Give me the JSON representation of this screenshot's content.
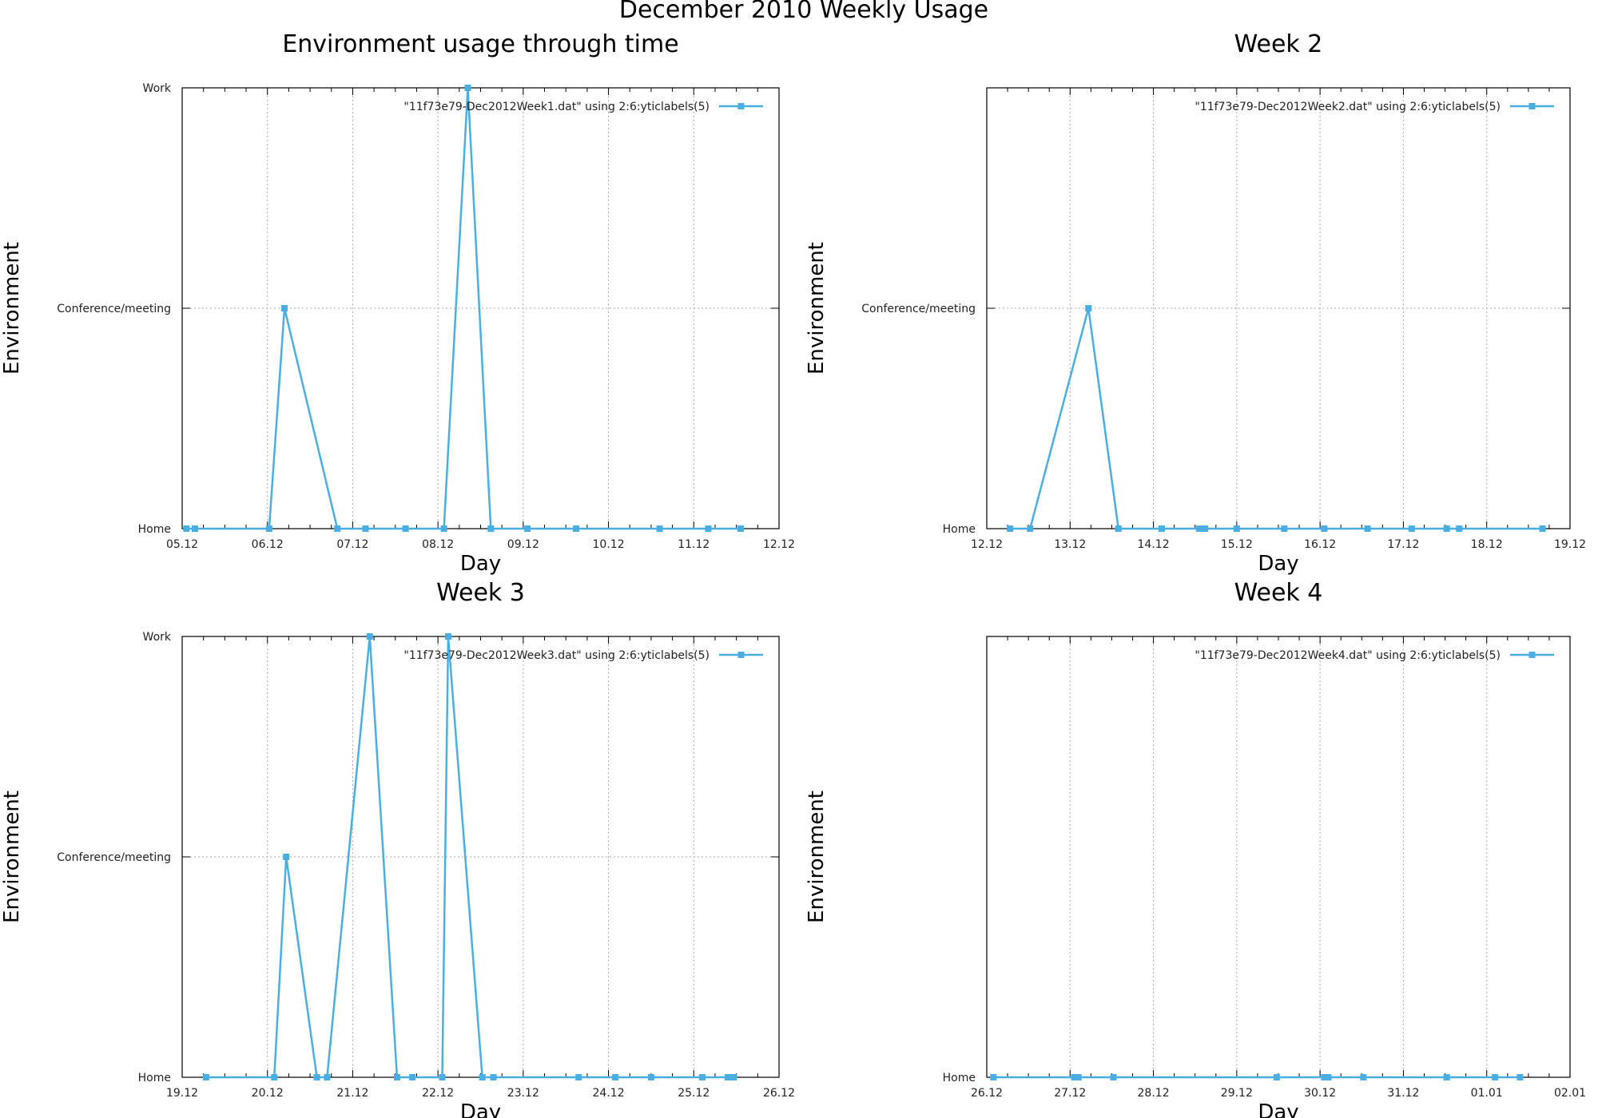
{
  "figure": {
    "title": "December 2010 Weekly Usage"
  },
  "style": {
    "series_color": "#4aaee3",
    "axis_color": "#000000",
    "grid_color": "#aaaaaa"
  },
  "y_categories": [
    "Home",
    "Conference/meeting",
    "Work"
  ],
  "chart_data": [
    {
      "type": "line",
      "title": "Environment usage through time",
      "xlabel": "Day",
      "ylabel": "Environment",
      "xlim": [
        5.0,
        12.0
      ],
      "x_ticks": [
        "05.12",
        "06.12",
        "07.12",
        "08.12",
        "09.12",
        "10.12",
        "11.12",
        "12.12"
      ],
      "y_ticks": [
        "Home",
        "Conference/meeting",
        "Work"
      ],
      "grid": true,
      "legend_position": "top-right",
      "series": [
        {
          "name": "\"11f73e79-Dec2012Week1.dat\" using 2:6:yticlabels(5)",
          "x": [
            5.05,
            5.15,
            6.02,
            6.2,
            6.82,
            7.15,
            7.62,
            8.07,
            8.35,
            8.62,
            9.05,
            9.62,
            10.6,
            11.17,
            11.55
          ],
          "y": [
            "Home",
            "Home",
            "Home",
            "Conference/meeting",
            "Home",
            "Home",
            "Home",
            "Home",
            "Work",
            "Home",
            "Home",
            "Home",
            "Home",
            "Home",
            "Home"
          ]
        }
      ]
    },
    {
      "type": "line",
      "title": "Week 2",
      "xlabel": "Day",
      "ylabel": "Environment",
      "xlim": [
        12.0,
        19.0
      ],
      "x_ticks": [
        "12.12",
        "13.12",
        "14.12",
        "15.12",
        "16.12",
        "17.12",
        "18.12",
        "19.12"
      ],
      "y_ticks": [
        "Home",
        "Conference/meeting"
      ],
      "grid": true,
      "legend_position": "top-right",
      "series": [
        {
          "name": "\"11f73e79-Dec2012Week2.dat\" using 2:6:yticlabels(5)",
          "x": [
            12.28,
            12.52,
            13.22,
            13.58,
            14.1,
            14.55,
            14.62,
            15.0,
            15.57,
            16.05,
            16.57,
            17.1,
            17.52,
            17.67,
            18.67
          ],
          "y": [
            "Home",
            "Home",
            "Conference/meeting",
            "Home",
            "Home",
            "Home",
            "Home",
            "Home",
            "Home",
            "Home",
            "Home",
            "Home",
            "Home",
            "Home",
            "Home"
          ]
        }
      ]
    },
    {
      "type": "line",
      "title": "Week 3",
      "xlabel": "Day",
      "ylabel": "Environment",
      "xlim": [
        19.0,
        26.0
      ],
      "x_ticks": [
        "19.12",
        "20.12",
        "21.12",
        "22.12",
        "23.12",
        "24.12",
        "25.12",
        "26.12"
      ],
      "y_ticks": [
        "Home",
        "Conference/meeting",
        "Work"
      ],
      "grid": true,
      "legend_position": "top-right",
      "series": [
        {
          "name": "\"11f73e79-Dec2012Week3.dat\" using 2:6:yticlabels(5)",
          "x": [
            19.28,
            20.08,
            20.22,
            20.58,
            20.7,
            21.2,
            21.52,
            21.7,
            22.05,
            22.12,
            22.52,
            22.65,
            23.65,
            24.08,
            24.5,
            25.1,
            25.4,
            25.47
          ],
          "y": [
            "Home",
            "Home",
            "Conference/meeting",
            "Home",
            "Home",
            "Work",
            "Home",
            "Home",
            "Home",
            "Work",
            "Home",
            "Home",
            "Home",
            "Home",
            "Home",
            "Home",
            "Home",
            "Home"
          ]
        }
      ]
    },
    {
      "type": "line",
      "title": "Week 4",
      "xlabel": "Day",
      "ylabel": "Environment",
      "xlim": [
        26.0,
        33.0
      ],
      "x_ticks": [
        "26.12",
        "27.12",
        "28.12",
        "29.12",
        "30.12",
        "31.12",
        "01.01",
        "02.01"
      ],
      "y_ticks": [
        "Home"
      ],
      "grid": true,
      "legend_position": "top-right",
      "series": [
        {
          "name": "\"11f73e79-Dec2012Week4.dat\" using 2:6:yticlabels(5)",
          "x": [
            26.08,
            27.05,
            27.1,
            27.52,
            29.48,
            30.05,
            30.1,
            30.52,
            31.52,
            32.1,
            32.4
          ],
          "y": [
            "Home",
            "Home",
            "Home",
            "Home",
            "Home",
            "Home",
            "Home",
            "Home",
            "Home",
            "Home",
            "Home"
          ]
        }
      ]
    }
  ]
}
